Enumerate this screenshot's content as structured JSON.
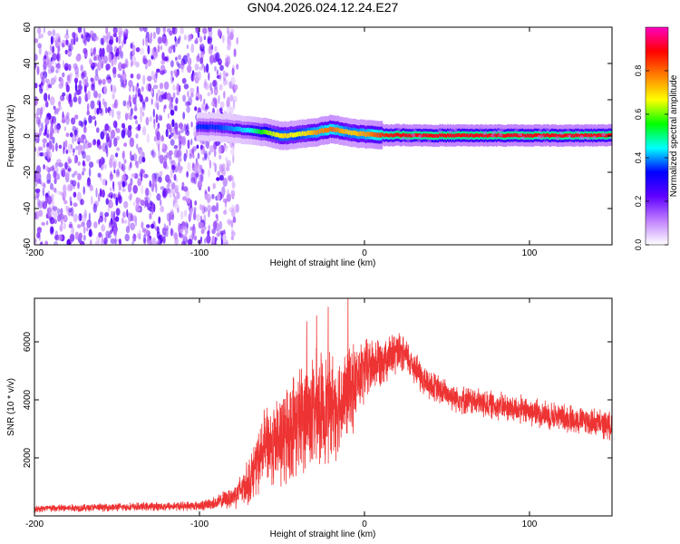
{
  "title": "GN04.2026.024.12.24.E27",
  "chart_data": [
    {
      "type": "heatmap",
      "title": "GN04.2026.024.12.24.E27",
      "xlabel": "Height of straight line (km)",
      "ylabel": "Frequency (Hz)",
      "xlim": [
        -200,
        150
      ],
      "ylim": [
        -60,
        60
      ],
      "x_ticks": [
        -200,
        -100,
        0,
        100
      ],
      "x_tick_labels": [
        "-200",
        "-100",
        "0",
        "100"
      ],
      "y_ticks": [
        -60,
        -40,
        -20,
        0,
        20,
        40,
        60
      ],
      "y_tick_labels": [
        "-60",
        "-40",
        "-20",
        "0",
        "20",
        "40",
        "60"
      ],
      "colorbar": {
        "label": "Normalized spectral amplitude",
        "range": [
          0,
          1
        ],
        "ticks": [
          0.0,
          0.2,
          0.4,
          0.6,
          0.8
        ],
        "tick_labels": [
          "0.0",
          "0.2",
          "0.4",
          "0.6",
          "0.8"
        ],
        "colormap": [
          "#ffffff",
          "#c080ff",
          "#6000ff",
          "#0000ff",
          "#00ffff",
          "#00ff00",
          "#ffff00",
          "#ff8000",
          "#ff0000",
          "#ff00c0"
        ]
      },
      "noise_region_x": [
        -200,
        -85
      ],
      "signal_track": {
        "x": [
          -102,
          -90,
          -80,
          -70,
          -60,
          -50,
          -40,
          -30,
          -20,
          -10,
          0,
          10,
          20,
          40,
          60,
          80,
          100,
          120,
          150
        ],
        "frequency_hz": [
          5,
          5,
          4,
          3,
          2,
          0,
          1,
          2,
          4,
          2,
          1,
          0.5,
          0.5,
          0.3,
          0.3,
          0.3,
          0.3,
          0.3,
          0.3
        ],
        "peak_amplitude": [
          0.35,
          0.35,
          0.4,
          0.45,
          0.6,
          0.7,
          0.65,
          0.75,
          0.8,
          0.7,
          0.75,
          0.85,
          0.9,
          0.9,
          0.9,
          0.9,
          0.9,
          0.9,
          0.9
        ]
      }
    },
    {
      "type": "line",
      "xlabel": "Height of straight line (km)",
      "ylabel": "SNR (10 * v/v)",
      "xlim": [
        -200,
        150
      ],
      "ylim": [
        0,
        7500
      ],
      "x_ticks": [
        -200,
        -100,
        0,
        100
      ],
      "x_tick_labels": [
        "-200",
        "-100",
        "0",
        "100"
      ],
      "y_ticks": [
        2000,
        4000,
        6000
      ],
      "y_tick_labels": [
        "2000",
        "4000",
        "6000"
      ],
      "grid": false,
      "series": [
        {
          "name": "SNR",
          "color": "#ee3333",
          "x": [
            -200,
            -150,
            -100,
            -90,
            -80,
            -75,
            -70,
            -65,
            -60,
            -55,
            -50,
            -45,
            -40,
            -35,
            -30,
            -25,
            -20,
            -15,
            -10,
            -5,
            0,
            5,
            10,
            15,
            20,
            25,
            30,
            35,
            40,
            50,
            60,
            70,
            80,
            90,
            100,
            110,
            120,
            130,
            140,
            150
          ],
          "values": [
            250,
            300,
            350,
            450,
            650,
            900,
            1200,
            1800,
            2400,
            2500,
            2600,
            3000,
            3300,
            3500,
            3600,
            3700,
            3800,
            3900,
            4200,
            4600,
            5000,
            5200,
            5400,
            5500,
            5600,
            5500,
            5200,
            4700,
            4500,
            4200,
            4000,
            3900,
            3800,
            3700,
            3600,
            3500,
            3400,
            3300,
            3200,
            3100
          ],
          "noise_amplitude": [
            150,
            150,
            180,
            250,
            450,
            650,
            900,
            1200,
            1500,
            1700,
            1900,
            2000,
            2100,
            2200,
            2300,
            2200,
            2100,
            2000,
            1800,
            1600,
            1300,
            1100,
            1000,
            900,
            800,
            700,
            700,
            650,
            600,
            550,
            550,
            550,
            550,
            550,
            550,
            550,
            550,
            550,
            550,
            550
          ],
          "spikes": [
            {
              "x": -35,
              "value": 6700
            },
            {
              "x": -29,
              "value": 6900
            },
            {
              "x": -22,
              "value": 7200
            },
            {
              "x": -10,
              "value": 7500
            }
          ]
        }
      ]
    }
  ]
}
